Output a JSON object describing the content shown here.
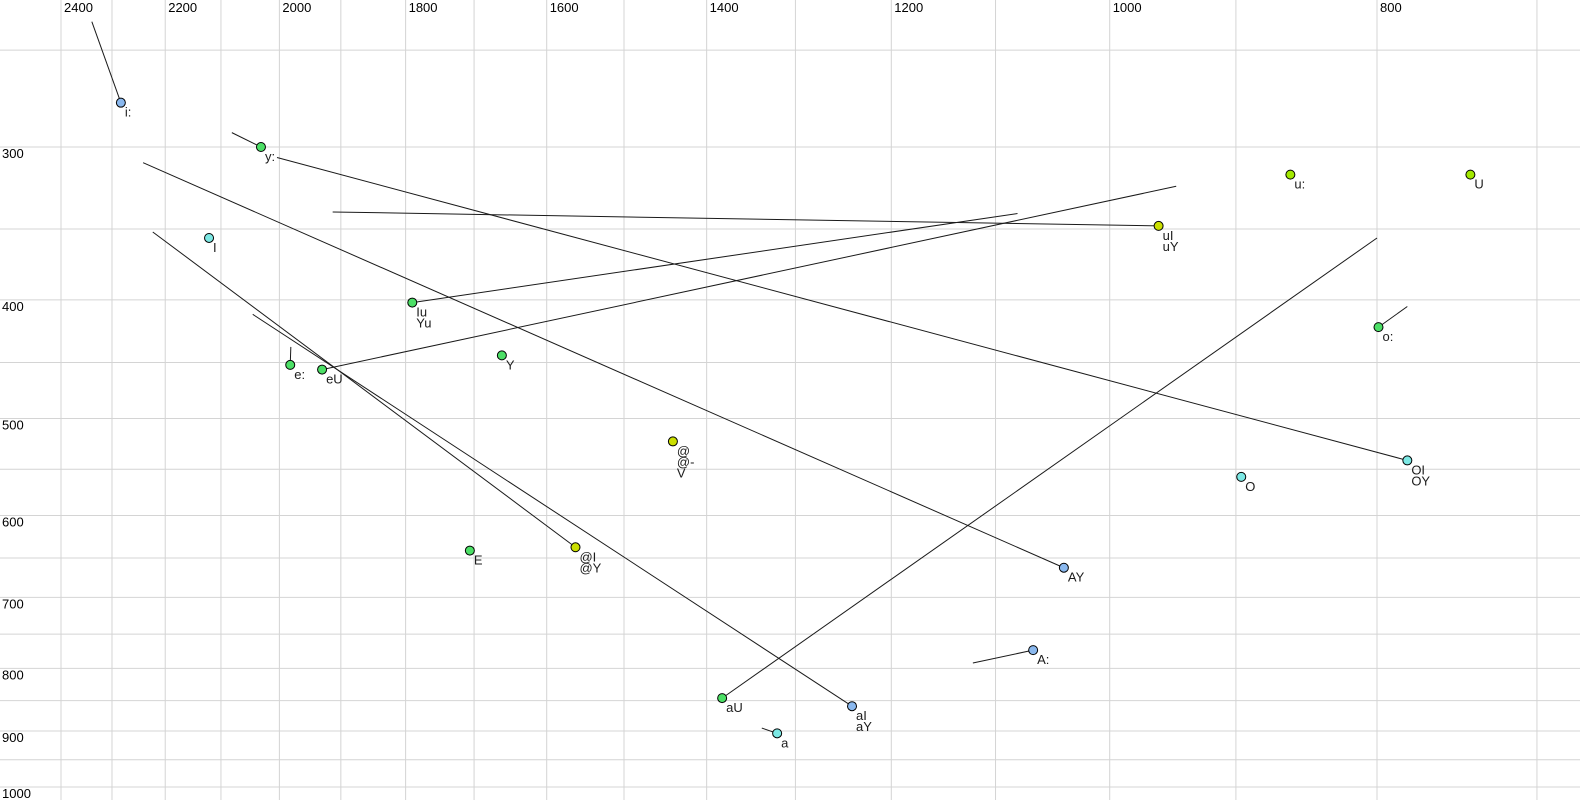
{
  "chart_data": {
    "type": "scatter",
    "description": "Vowel formant plot: F2 (Hz) on reversed logarithmic x-axis, F1 (Hz) on logarithmic y-axis, with diphthong glide trajectory lines",
    "x_axis": {
      "unit": "Hz",
      "scale": "log",
      "direction": "reversed",
      "labeled_ticks": [
        2400,
        2200,
        2000,
        1800,
        1600,
        1400,
        1200,
        1000,
        800
      ],
      "minor_tick_step": 100,
      "minor_tick_max": 2400,
      "minor_tick_min": 700
    },
    "y_axis": {
      "unit": "Hz",
      "scale": "log",
      "direction": "down",
      "labeled_ticks": [
        300,
        400,
        500,
        600,
        700,
        800,
        900,
        1000
      ],
      "minor_tick_step": 50,
      "minor_tick_max": 1000,
      "minor_tick_min": 250
    },
    "grid": true,
    "colors": {
      "blue": "#8ab8ee",
      "cyan": "#7ce8e4",
      "green": "#4cdf66",
      "yellow_green": "#a2e800",
      "yellow": "#cbdf00",
      "grid_line": "#d4d4d4",
      "trajectory_line": "#1a1a1a",
      "text": "#000000",
      "marker_outline": "#000000",
      "background": "#ffffff"
    },
    "points": [
      {
        "labels": [
          "i:"
        ],
        "f2": 2283,
        "f1": 276,
        "color": "blue",
        "glide": {
          "f2": 2339,
          "f1": 237
        }
      },
      {
        "labels": [
          "y:"
        ],
        "f2": 2031,
        "f1": 300,
        "color": "green",
        "glide": {
          "f2": 2081,
          "f1": 292
        }
      },
      {
        "labels": [
          "I"
        ],
        "f2": 2121,
        "f1": 356,
        "color": "cyan",
        "glide": null
      },
      {
        "labels": [
          "e:"
        ],
        "f2": 1982,
        "f1": 452,
        "color": "green",
        "glide": {
          "f2": 1981,
          "f1": 437
        }
      },
      {
        "labels": [
          "eU"
        ],
        "f2": 1930,
        "f1": 456,
        "color": "green",
        "glide": {
          "f2": 946,
          "f1": 323
        }
      },
      {
        "labels": [
          "Iu",
          "Yu"
        ],
        "f2": 1790,
        "f1": 402,
        "color": "green",
        "glide": {
          "f2": 1080,
          "f1": 340
        }
      },
      {
        "labels": [
          "Y"
        ],
        "f2": 1661,
        "f1": 444,
        "color": "green",
        "glide": null
      },
      {
        "labels": [
          "@",
          "@-",
          "V"
        ],
        "f2": 1440,
        "f1": 522,
        "color": "yellow",
        "glide": null
      },
      {
        "labels": [
          "E"
        ],
        "f2": 1706,
        "f1": 641,
        "color": "green",
        "glide": null
      },
      {
        "labels": [
          "@I",
          "@Y"
        ],
        "f2": 1562,
        "f1": 637,
        "color": "yellow",
        "glide": {
          "f2": 2223,
          "f1": 352
        }
      },
      {
        "labels": [
          "aU"
        ],
        "f2": 1382,
        "f1": 846,
        "color": "green",
        "glide": {
          "f2": 800,
          "f1": 356
        }
      },
      {
        "labels": [
          "a"
        ],
        "f2": 1320,
        "f1": 904,
        "color": "cyan",
        "glide": {
          "f2": 1337,
          "f1": 895
        }
      },
      {
        "labels": [
          "aI",
          "aY"
        ],
        "f2": 1240,
        "f1": 859,
        "color": "blue",
        "glide": {
          "f2": 2045,
          "f1": 411
        }
      },
      {
        "labels": [
          "A:"
        ],
        "f2": 1066,
        "f1": 773,
        "color": "blue",
        "glide": {
          "f2": 1121,
          "f1": 792
        }
      },
      {
        "labels": [
          "AY"
        ],
        "f2": 1039,
        "f1": 662,
        "color": "blue",
        "glide": {
          "f2": 2241,
          "f1": 309
        }
      },
      {
        "labels": [
          "O"
        ],
        "f2": 896,
        "f1": 558,
        "color": "cyan",
        "glide": null
      },
      {
        "labels": [
          "OI",
          "OY"
        ],
        "f2": 780,
        "f1": 541,
        "color": "cyan",
        "glide": {
          "f2": 2004,
          "f1": 306
        }
      },
      {
        "labels": [
          "o:"
        ],
        "f2": 799,
        "f1": 421,
        "color": "green",
        "glide": {
          "f2": 780,
          "f1": 405
        }
      },
      {
        "labels": [
          "u:"
        ],
        "f2": 860,
        "f1": 316,
        "color": "yellow_green",
        "glide": null
      },
      {
        "labels": [
          "U"
        ],
        "f2": 740,
        "f1": 316,
        "color": "yellow_green",
        "glide": null
      },
      {
        "labels": [
          "uI",
          "uY"
        ],
        "f2": 960,
        "f1": 348,
        "color": "yellow",
        "glide": {
          "f2": 1913,
          "f1": 339
        }
      }
    ]
  }
}
